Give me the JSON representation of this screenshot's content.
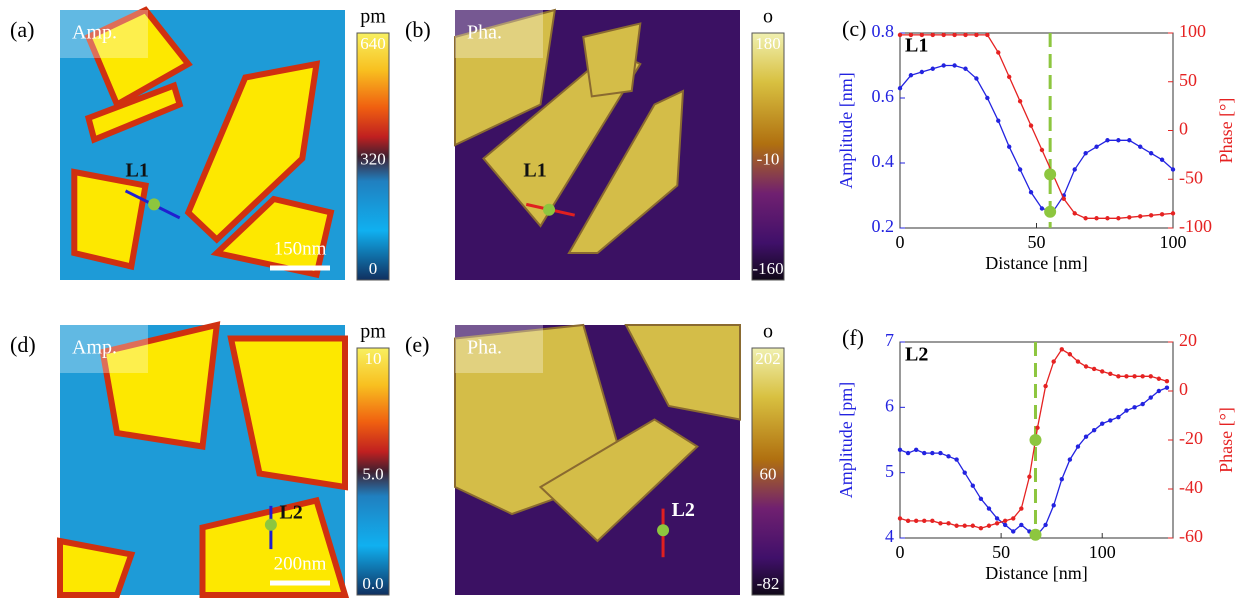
{
  "panels": [
    {
      "label": "(a)",
      "tag": "Amp.",
      "unit": "pm",
      "colorbar_labels": [
        "640",
        "320",
        "0"
      ],
      "line": "L1",
      "scale_bar": "150nm"
    },
    {
      "label": "(b)",
      "tag": "Pha.",
      "unit": "o",
      "colorbar_labels": [
        "180",
        "-10",
        "-160"
      ],
      "line": "L1"
    },
    {
      "label": "(d)",
      "tag": "Amp.",
      "unit": "pm",
      "colorbar_labels": [
        "10",
        "5.0",
        "0.0"
      ],
      "line": "L2",
      "scale_bar": "200nm"
    },
    {
      "label": "(e)",
      "tag": "Pha.",
      "unit": "o",
      "colorbar_labels": [
        "202",
        "60",
        "-82"
      ],
      "line": "L2"
    }
  ],
  "chart_data": [
    {
      "type": "line",
      "label": "(c)",
      "annotation": "L1",
      "xlabel": "Distance [nm]",
      "ylabel": "Amplitude [nm]",
      "y2label": "Phase [°]",
      "xlim": [
        0,
        100
      ],
      "xticks": [
        0,
        50,
        100
      ],
      "ylim": [
        0.2,
        0.8
      ],
      "yticks": [
        0.2,
        0.4,
        0.6,
        0.8
      ],
      "y2lim": [
        -100,
        100
      ],
      "y2ticks": [
        -100,
        -50,
        0,
        50,
        100
      ],
      "x": [
        0,
        4,
        8,
        12,
        16,
        20,
        24,
        28,
        32,
        36,
        40,
        44,
        48,
        52,
        56,
        60,
        64,
        68,
        72,
        76,
        80,
        84,
        88,
        92,
        96,
        100
      ],
      "series": [
        {
          "color": "#2323e0",
          "values": [
            0.63,
            0.67,
            0.68,
            0.69,
            0.7,
            0.7,
            0.69,
            0.66,
            0.6,
            0.53,
            0.45,
            0.38,
            0.31,
            0.26,
            0.25,
            0.3,
            0.38,
            0.43,
            0.45,
            0.47,
            0.47,
            0.47,
            0.45,
            0.43,
            0.41,
            0.38
          ]
        },
        {
          "color": "#e52222",
          "axis": "y2",
          "values": [
            98,
            98,
            98,
            98,
            98,
            98,
            98,
            98,
            98,
            80,
            55,
            30,
            5,
            -20,
            -45,
            -70,
            -85,
            -90,
            -90,
            -90,
            -90,
            -89,
            -88,
            -87,
            -86,
            -85
          ]
        }
      ],
      "marker": {
        "x": 55,
        "values": [
          0.25,
          -45
        ],
        "color": "#8dc63f"
      }
    },
    {
      "type": "line",
      "label": "(f)",
      "annotation": "L2",
      "xlabel": "Distance [nm]",
      "ylabel": "Amplitude [pm]",
      "y2label": "Phase [°]",
      "xlim": [
        0,
        135
      ],
      "xticks": [
        0,
        50,
        100
      ],
      "ylim": [
        4,
        7
      ],
      "yticks": [
        4,
        5,
        6,
        7
      ],
      "y2lim": [
        -60,
        20
      ],
      "y2ticks": [
        -60,
        -40,
        -20,
        0,
        20
      ],
      "x": [
        0,
        4,
        8,
        12,
        16,
        20,
        24,
        28,
        32,
        36,
        40,
        44,
        48,
        52,
        56,
        60,
        64,
        68,
        72,
        76,
        80,
        84,
        88,
        92,
        96,
        100,
        104,
        108,
        112,
        116,
        120,
        124,
        128,
        132
      ],
      "series": [
        {
          "color": "#2323e0",
          "values": [
            5.35,
            5.3,
            5.35,
            5.3,
            5.3,
            5.3,
            5.25,
            5.2,
            5.0,
            4.8,
            4.6,
            4.45,
            4.3,
            4.2,
            4.1,
            4.2,
            4.1,
            4.05,
            4.2,
            4.5,
            4.9,
            5.2,
            5.4,
            5.55,
            5.65,
            5.75,
            5.8,
            5.85,
            5.95,
            6.0,
            6.05,
            6.15,
            6.25,
            6.3
          ]
        },
        {
          "color": "#e52222",
          "axis": "y2",
          "values": [
            -52,
            -53,
            -53,
            -53,
            -53,
            -54,
            -54,
            -55,
            -55,
            -55,
            -56,
            -55,
            -54,
            -53,
            -52,
            -48,
            -35,
            -15,
            2,
            12,
            17,
            15,
            12,
            10,
            9,
            8,
            7,
            6,
            6,
            6,
            6,
            6,
            5,
            4
          ]
        }
      ],
      "marker": {
        "x": 67,
        "values": [
          4.05,
          -20
        ],
        "color": "#8dc63f"
      }
    }
  ]
}
